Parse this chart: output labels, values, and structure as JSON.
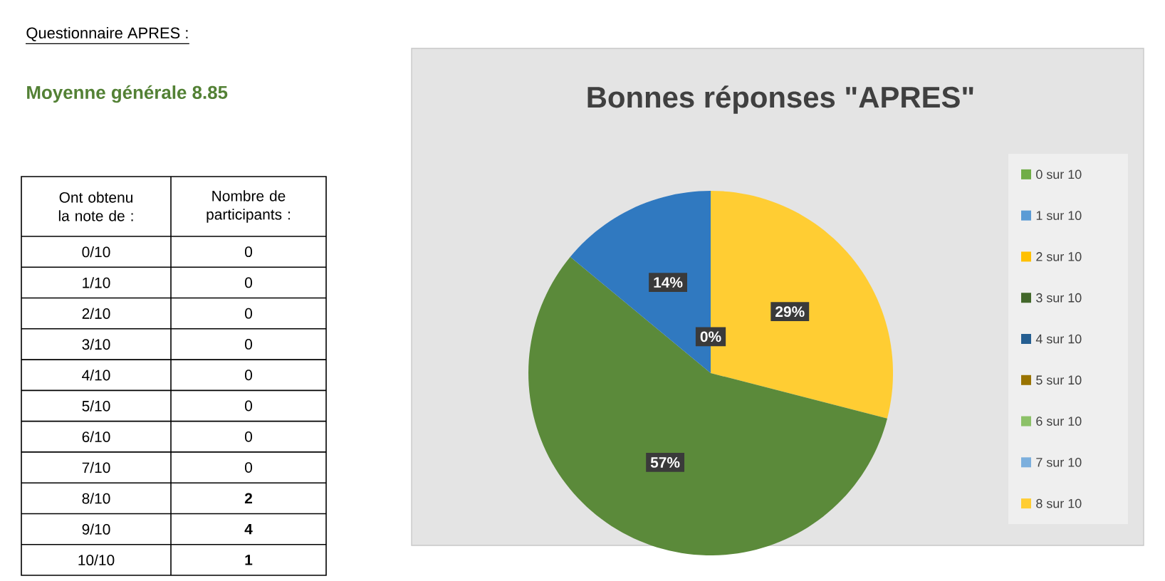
{
  "chart_data": [
    {
      "type": "heatmap",
      "title": "Questionnaire APRES :",
      "subtitle": "Moyenne générale 8.85",
      "ylabel": "Ont obtenu la note de :",
      "xlabel": "Nombre de participants :",
      "categories": [
        null
      ],
      "y_categories": [
        "0/10",
        "1/10",
        "2/10",
        "3/10",
        "4/10",
        "5/10",
        "6/10",
        "7/10",
        "8/10",
        "9/10",
        "10/10"
      ],
      "cells": [
        [
          0
        ],
        [
          0
        ],
        [
          0
        ],
        [
          0
        ],
        [
          0
        ],
        [
          0
        ],
        [
          0
        ],
        [
          0
        ],
        [
          2
        ],
        [
          4
        ],
        [
          1
        ]
      ],
      "cell_labels": [
        [
          "0"
        ],
        [
          "0"
        ],
        [
          "0"
        ],
        [
          "0"
        ],
        [
          "0"
        ],
        [
          "0"
        ],
        [
          "0"
        ],
        [
          "0"
        ],
        [
          "2"
        ],
        [
          "4"
        ],
        [
          "1"
        ]
      ]
    },
    {
      "type": "pie",
      "title": "Bonnes réponses \"APRES\"",
      "categories": [
        "0 sur 10",
        "1 sur 10",
        "2 sur 10",
        "3 sur 10",
        "4 sur 10",
        "5 sur 10",
        "6 sur 10",
        "7 sur 10",
        "8 sur 10",
        null,
        null
      ],
      "values": [
        0,
        0,
        0,
        0,
        0,
        0,
        0,
        0,
        29,
        57,
        14
      ],
      "value_labels": [
        null,
        null,
        null,
        null,
        null,
        null,
        null,
        "0%",
        "29%",
        "57%",
        "14%"
      ],
      "colors": [
        "#70ad47",
        "#5b9bd5",
        "#ffc000",
        "#43682b",
        "#255e91",
        "#997300",
        "#8cc168",
        "#7cafdd",
        "#ffcd33",
        "#5b8a3a",
        "#3079c0"
      ],
      "legend": "right"
    }
  ]
}
